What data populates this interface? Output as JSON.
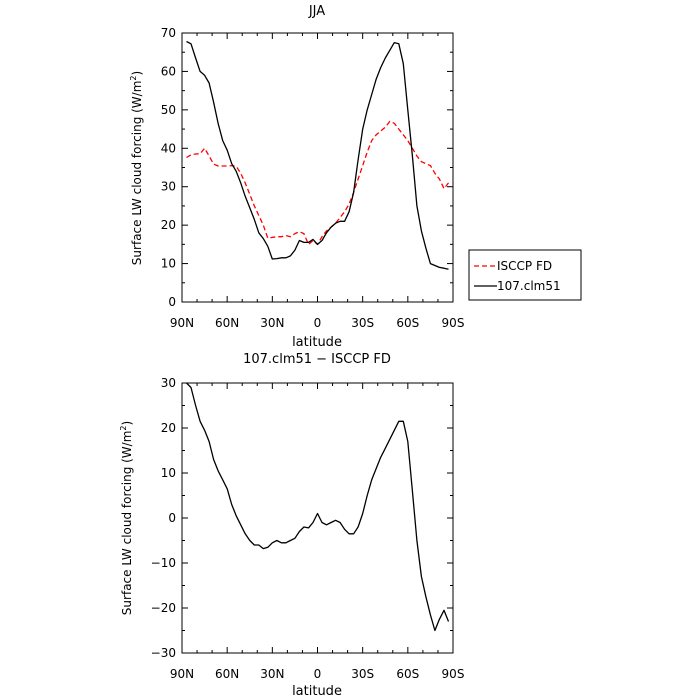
{
  "chart_data": [
    {
      "type": "line",
      "title": "JJA",
      "xlabel": "latitude",
      "ylabel_main": "Surface LW cloud forcing (W/m",
      "ylabel_sup": "2",
      "ylabel_close": ")",
      "xlim": [
        90,
        -90
      ],
      "ylim": [
        0,
        70
      ],
      "x_ticks": [
        90,
        60,
        30,
        0,
        -30,
        -60,
        -90
      ],
      "x_tick_labels": [
        "90N",
        "60N",
        "30N",
        "0",
        "30S",
        "60S",
        "90S"
      ],
      "y_ticks": [
        0,
        10,
        20,
        30,
        40,
        50,
        60,
        70
      ],
      "y_tick_labels": [
        "0",
        "10",
        "20",
        "30",
        "40",
        "50",
        "60",
        "70"
      ],
      "legend_position": "right",
      "series": [
        {
          "name": "ISCCP FD",
          "color": "#ff0000",
          "style": "dashed",
          "x": [
            87,
            84,
            81,
            78,
            75,
            72,
            69,
            66,
            63,
            60,
            57,
            54,
            51,
            48,
            45,
            42,
            39,
            36,
            33,
            30,
            27,
            24,
            21,
            18,
            15,
            12,
            9,
            6,
            3,
            0,
            -3,
            -6,
            -9,
            -12,
            -15,
            -18,
            -21,
            -24,
            -27,
            -30,
            -33,
            -36,
            -39,
            -42,
            -45,
            -48,
            -51,
            -54,
            -57,
            -60,
            -63,
            -66,
            -69,
            -72,
            -75,
            -78,
            -81,
            -84,
            -87
          ],
          "values": [
            37.6,
            38.3,
            38.5,
            38.6,
            40.0,
            38.0,
            35.9,
            35.4,
            35.4,
            35.4,
            35.5,
            35.3,
            33.5,
            31.0,
            28.0,
            25.0,
            22.5,
            20.0,
            16.6,
            16.8,
            17.0,
            17.0,
            17.3,
            17.0,
            17.8,
            18.3,
            17.8,
            15.0,
            16.0,
            15.0,
            17.0,
            18.5,
            19.5,
            20.5,
            22.0,
            23.5,
            25.5,
            28.5,
            32.0,
            35.5,
            39.0,
            42.0,
            43.5,
            44.5,
            45.5,
            47.0,
            46.5,
            45.0,
            43.5,
            42.0,
            40.0,
            38.0,
            36.5,
            36.0,
            35.5,
            33.5,
            32.0,
            29.5,
            31.0
          ]
        },
        {
          "name": "107.clm51",
          "color": "#000000",
          "style": "solid",
          "x": [
            87,
            84,
            81,
            78,
            75,
            72,
            69,
            66,
            63,
            60,
            57,
            54,
            51,
            48,
            45,
            42,
            39,
            36,
            33,
            30,
            27,
            24,
            21,
            18,
            15,
            12,
            9,
            6,
            3,
            0,
            -3,
            -6,
            -9,
            -12,
            -15,
            -18,
            -21,
            -24,
            -27,
            -30,
            -33,
            -36,
            -39,
            -42,
            -45,
            -48,
            -51,
            -54,
            -57,
            -60,
            -63,
            -66,
            -69,
            -72,
            -75,
            -78,
            -81,
            -84,
            -87
          ],
          "values": [
            67.8,
            67.2,
            63.5,
            60.0,
            59.0,
            57.0,
            52.0,
            46.5,
            42.0,
            39.5,
            36.0,
            34.0,
            31.0,
            27.5,
            24.5,
            21.5,
            18.0,
            16.5,
            14.5,
            11.2,
            11.3,
            11.5,
            11.5,
            12.0,
            13.5,
            16.0,
            15.5,
            15.5,
            16.3,
            15.0,
            16.0,
            18.0,
            19.5,
            20.5,
            21.0,
            21.0,
            23.5,
            28.5,
            37.0,
            45.0,
            50.0,
            54.0,
            58.0,
            61.0,
            63.5,
            65.5,
            67.5,
            67.2,
            62.0,
            50.0,
            38.0,
            25.0,
            18.5,
            14.0,
            10.0,
            9.5,
            9.0,
            8.8,
            8.5
          ]
        }
      ]
    },
    {
      "type": "line",
      "title": "107.clm51 − ISCCP FD",
      "xlabel": "latitude",
      "ylabel_main": "Surface LW cloud forcing (W/m",
      "ylabel_sup": "2",
      "ylabel_close": ")",
      "xlim": [
        90,
        -90
      ],
      "ylim": [
        -30,
        30
      ],
      "x_ticks": [
        90,
        60,
        30,
        0,
        -30,
        -60,
        -90
      ],
      "x_tick_labels": [
        "90N",
        "60N",
        "30N",
        "0",
        "30S",
        "60S",
        "90S"
      ],
      "y_ticks": [
        -30,
        -20,
        -10,
        0,
        10,
        20,
        30
      ],
      "y_tick_labels": [
        "−30",
        "−20",
        "−10",
        "0",
        "10",
        "20",
        "30"
      ],
      "series": [
        {
          "color": "#000000",
          "style": "solid",
          "x": [
            87,
            84,
            81,
            78,
            75,
            72,
            69,
            66,
            63,
            60,
            57,
            54,
            51,
            48,
            45,
            42,
            39,
            36,
            33,
            30,
            27,
            24,
            21,
            18,
            15,
            12,
            9,
            6,
            3,
            0,
            -3,
            -6,
            -9,
            -12,
            -15,
            -18,
            -21,
            -24,
            -27,
            -30,
            -33,
            -36,
            -39,
            -42,
            -45,
            -48,
            -51,
            -54,
            -57,
            -60,
            -63,
            -66,
            -69,
            -72,
            -75,
            -78,
            -81,
            -84,
            -87
          ],
          "values": [
            30.0,
            29.0,
            25.0,
            21.5,
            19.5,
            17.0,
            13.0,
            10.5,
            8.5,
            6.5,
            3.0,
            0.5,
            -1.5,
            -3.5,
            -5.0,
            -6.0,
            -6.0,
            -6.8,
            -6.5,
            -5.5,
            -5.0,
            -5.5,
            -5.5,
            -5.0,
            -4.5,
            -3.0,
            -2.0,
            -2.2,
            -1.0,
            1.0,
            -1.0,
            -1.5,
            -1.0,
            -0.5,
            -1.0,
            -2.5,
            -3.5,
            -3.5,
            -2.0,
            1.0,
            5.0,
            8.5,
            11.0,
            13.5,
            15.5,
            17.5,
            19.5,
            21.5,
            21.5,
            17.0,
            6.0,
            -5.0,
            -13.0,
            -17.5,
            -21.5,
            -25.0,
            -22.5,
            -20.5,
            -23.0
          ]
        }
      ]
    }
  ]
}
